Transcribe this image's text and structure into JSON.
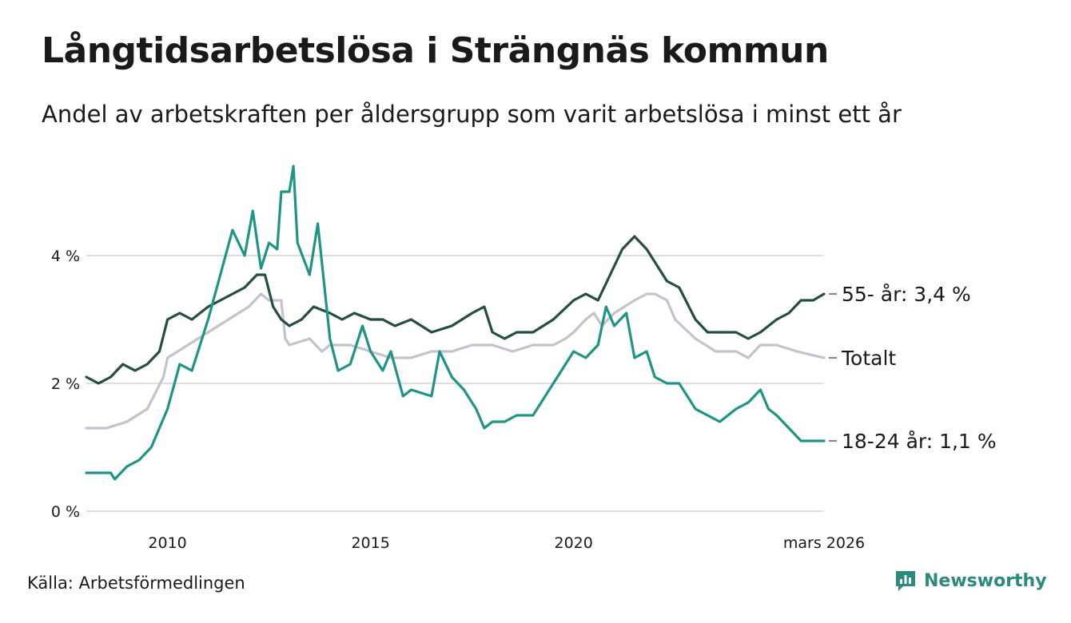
{
  "title": "Långtidsarbetslösa i Strängnäs kommun",
  "subtitle": "Andel av arbetskraften per åldersgrupp som varit arbetslösa i minst ett år",
  "source": "Källa: Arbetsförmedlingen",
  "brand": "Newsworthy",
  "colors": {
    "age55": "#254d44",
    "total": "#c4c2cf",
    "age18_24": "#1e9584",
    "grid": "#dddddd",
    "brand": "#2c8a7d"
  },
  "chart_data": {
    "type": "line",
    "title": "Långtidsarbetslösa i Strängnäs kommun",
    "xlabel": "",
    "ylabel": "",
    "xlim": [
      2008.0,
      2026.167
    ],
    "ylim": [
      0,
      5.5
    ],
    "x_ticks": [
      {
        "value": 2010,
        "label": "2010"
      },
      {
        "value": 2015,
        "label": "2015"
      },
      {
        "value": 2020,
        "label": "2020"
      },
      {
        "value": 2026.167,
        "label": "mars 2026"
      }
    ],
    "y_ticks": [
      {
        "value": 0,
        "label": "0 %"
      },
      {
        "value": 2,
        "label": "2 %"
      },
      {
        "value": 4,
        "label": "4 %"
      }
    ],
    "series": [
      {
        "name": "Totalt",
        "end_label": "Totalt",
        "points": [
          [
            2008.0,
            1.3
          ],
          [
            2008.5,
            1.3
          ],
          [
            2009.0,
            1.4
          ],
          [
            2009.5,
            1.6
          ],
          [
            2009.9,
            2.1
          ],
          [
            2010.0,
            2.4
          ],
          [
            2010.5,
            2.6
          ],
          [
            2011.0,
            2.8
          ],
          [
            2011.5,
            3.0
          ],
          [
            2012.0,
            3.2
          ],
          [
            2012.3,
            3.4
          ],
          [
            2012.5,
            3.3
          ],
          [
            2012.8,
            3.3
          ],
          [
            2012.9,
            2.7
          ],
          [
            2013.0,
            2.6
          ],
          [
            2013.5,
            2.7
          ],
          [
            2013.8,
            2.5
          ],
          [
            2014.0,
            2.6
          ],
          [
            2014.5,
            2.6
          ],
          [
            2015.0,
            2.5
          ],
          [
            2015.5,
            2.4
          ],
          [
            2016.0,
            2.4
          ],
          [
            2016.5,
            2.5
          ],
          [
            2017.0,
            2.5
          ],
          [
            2017.5,
            2.6
          ],
          [
            2018.0,
            2.6
          ],
          [
            2018.5,
            2.5
          ],
          [
            2019.0,
            2.6
          ],
          [
            2019.5,
            2.6
          ],
          [
            2019.8,
            2.7
          ],
          [
            2020.0,
            2.8
          ],
          [
            2020.3,
            3.0
          ],
          [
            2020.5,
            3.1
          ],
          [
            2020.7,
            2.9
          ],
          [
            2021.0,
            3.1
          ],
          [
            2021.5,
            3.3
          ],
          [
            2021.8,
            3.4
          ],
          [
            2022.0,
            3.4
          ],
          [
            2022.3,
            3.3
          ],
          [
            2022.5,
            3.0
          ],
          [
            2023.0,
            2.7
          ],
          [
            2023.5,
            2.5
          ],
          [
            2024.0,
            2.5
          ],
          [
            2024.3,
            2.4
          ],
          [
            2024.6,
            2.6
          ],
          [
            2025.0,
            2.6
          ],
          [
            2025.5,
            2.5
          ],
          [
            2026.167,
            2.4
          ]
        ],
        "last_value": 2.4
      },
      {
        "name": "55- år",
        "end_label": "55- år: 3,4 %",
        "points": [
          [
            2008.0,
            2.1
          ],
          [
            2008.3,
            2.0
          ],
          [
            2008.6,
            2.1
          ],
          [
            2008.9,
            2.3
          ],
          [
            2009.2,
            2.2
          ],
          [
            2009.5,
            2.3
          ],
          [
            2009.8,
            2.5
          ],
          [
            2010.0,
            3.0
          ],
          [
            2010.3,
            3.1
          ],
          [
            2010.6,
            3.0
          ],
          [
            2011.0,
            3.2
          ],
          [
            2011.3,
            3.3
          ],
          [
            2011.6,
            3.4
          ],
          [
            2011.9,
            3.5
          ],
          [
            2012.2,
            3.7
          ],
          [
            2012.4,
            3.7
          ],
          [
            2012.6,
            3.2
          ],
          [
            2012.8,
            3.0
          ],
          [
            2013.0,
            2.9
          ],
          [
            2013.3,
            3.0
          ],
          [
            2013.6,
            3.2
          ],
          [
            2014.0,
            3.1
          ],
          [
            2014.3,
            3.0
          ],
          [
            2014.6,
            3.1
          ],
          [
            2015.0,
            3.0
          ],
          [
            2015.3,
            3.0
          ],
          [
            2015.6,
            2.9
          ],
          [
            2016.0,
            3.0
          ],
          [
            2016.5,
            2.8
          ],
          [
            2017.0,
            2.9
          ],
          [
            2017.5,
            3.1
          ],
          [
            2017.8,
            3.2
          ],
          [
            2018.0,
            2.8
          ],
          [
            2018.3,
            2.7
          ],
          [
            2018.6,
            2.8
          ],
          [
            2019.0,
            2.8
          ],
          [
            2019.5,
            3.0
          ],
          [
            2020.0,
            3.3
          ],
          [
            2020.3,
            3.4
          ],
          [
            2020.6,
            3.3
          ],
          [
            2020.9,
            3.7
          ],
          [
            2021.2,
            4.1
          ],
          [
            2021.5,
            4.3
          ],
          [
            2021.8,
            4.1
          ],
          [
            2022.0,
            3.9
          ],
          [
            2022.3,
            3.6
          ],
          [
            2022.6,
            3.5
          ],
          [
            2023.0,
            3.0
          ],
          [
            2023.3,
            2.8
          ],
          [
            2023.6,
            2.8
          ],
          [
            2024.0,
            2.8
          ],
          [
            2024.3,
            2.7
          ],
          [
            2024.6,
            2.8
          ],
          [
            2025.0,
            3.0
          ],
          [
            2025.3,
            3.1
          ],
          [
            2025.6,
            3.3
          ],
          [
            2025.9,
            3.3
          ],
          [
            2026.167,
            3.4
          ]
        ],
        "last_value": 3.4
      },
      {
        "name": "18-24 år",
        "end_label": "18-24 år: 1,1 %",
        "points": [
          [
            2008.0,
            0.6
          ],
          [
            2008.3,
            0.6
          ],
          [
            2008.6,
            0.6
          ],
          [
            2008.7,
            0.5
          ],
          [
            2009.0,
            0.7
          ],
          [
            2009.3,
            0.8
          ],
          [
            2009.6,
            1.0
          ],
          [
            2010.0,
            1.6
          ],
          [
            2010.3,
            2.3
          ],
          [
            2010.6,
            2.2
          ],
          [
            2011.0,
            3.0
          ],
          [
            2011.3,
            3.7
          ],
          [
            2011.6,
            4.4
          ],
          [
            2011.9,
            4.0
          ],
          [
            2012.1,
            4.7
          ],
          [
            2012.3,
            3.8
          ],
          [
            2012.5,
            4.2
          ],
          [
            2012.7,
            4.1
          ],
          [
            2012.8,
            5.0
          ],
          [
            2013.0,
            5.0
          ],
          [
            2013.1,
            5.4
          ],
          [
            2013.2,
            4.2
          ],
          [
            2013.5,
            3.7
          ],
          [
            2013.7,
            4.5
          ],
          [
            2014.0,
            2.7
          ],
          [
            2014.2,
            2.2
          ],
          [
            2014.5,
            2.3
          ],
          [
            2014.8,
            2.9
          ],
          [
            2015.0,
            2.5
          ],
          [
            2015.3,
            2.2
          ],
          [
            2015.5,
            2.5
          ],
          [
            2015.8,
            1.8
          ],
          [
            2016.0,
            1.9
          ],
          [
            2016.5,
            1.8
          ],
          [
            2016.7,
            2.5
          ],
          [
            2017.0,
            2.1
          ],
          [
            2017.3,
            1.9
          ],
          [
            2017.6,
            1.6
          ],
          [
            2017.8,
            1.3
          ],
          [
            2018.0,
            1.4
          ],
          [
            2018.3,
            1.4
          ],
          [
            2018.6,
            1.5
          ],
          [
            2019.0,
            1.5
          ],
          [
            2019.3,
            1.8
          ],
          [
            2019.6,
            2.1
          ],
          [
            2019.8,
            2.3
          ],
          [
            2020.0,
            2.5
          ],
          [
            2020.3,
            2.4
          ],
          [
            2020.6,
            2.6
          ],
          [
            2020.8,
            3.2
          ],
          [
            2021.0,
            2.9
          ],
          [
            2021.3,
            3.1
          ],
          [
            2021.5,
            2.4
          ],
          [
            2021.8,
            2.5
          ],
          [
            2022.0,
            2.1
          ],
          [
            2022.3,
            2.0
          ],
          [
            2022.6,
            2.0
          ],
          [
            2023.0,
            1.6
          ],
          [
            2023.3,
            1.5
          ],
          [
            2023.6,
            1.4
          ],
          [
            2024.0,
            1.6
          ],
          [
            2024.3,
            1.7
          ],
          [
            2024.6,
            1.9
          ],
          [
            2024.8,
            1.6
          ],
          [
            2025.0,
            1.5
          ],
          [
            2025.3,
            1.3
          ],
          [
            2025.6,
            1.1
          ],
          [
            2025.9,
            1.1
          ],
          [
            2026.167,
            1.1
          ]
        ],
        "last_value": 1.1
      }
    ]
  }
}
